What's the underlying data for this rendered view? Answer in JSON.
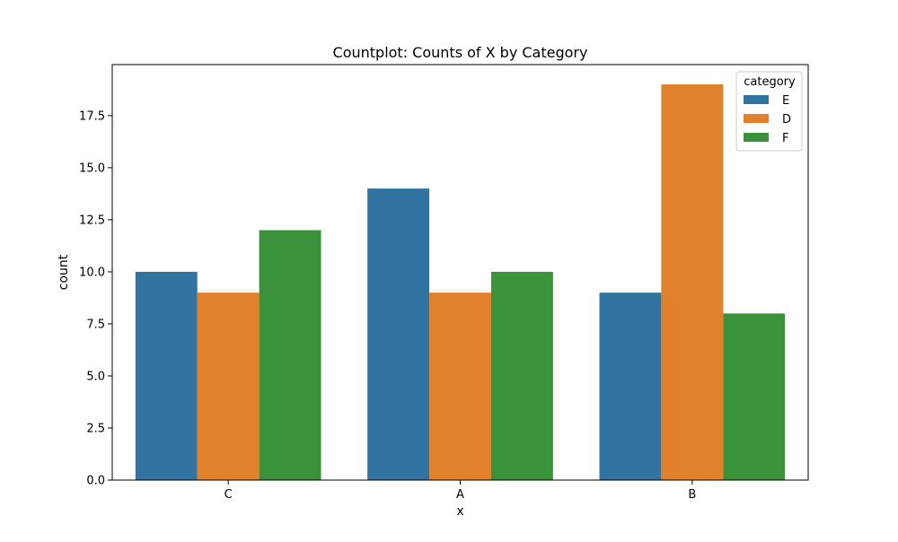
{
  "chart_data": {
    "type": "bar",
    "title": "Countplot: Counts of X by Category",
    "xlabel": "x",
    "ylabel": "count",
    "categories": [
      "C",
      "A",
      "B"
    ],
    "series": [
      {
        "name": "E",
        "color": "#3274a1",
        "values": [
          10,
          14,
          9
        ]
      },
      {
        "name": "D",
        "color": "#e1812c",
        "values": [
          9,
          9,
          19
        ]
      },
      {
        "name": "F",
        "color": "#3a923a",
        "values": [
          12,
          10,
          8
        ]
      }
    ],
    "ylim": [
      0,
      19.95
    ],
    "yticks": [
      0.0,
      2.5,
      5.0,
      7.5,
      10.0,
      12.5,
      15.0,
      17.5
    ],
    "ytick_labels": [
      "0.0",
      "2.5",
      "5.0",
      "7.5",
      "10.0",
      "12.5",
      "15.0",
      "17.5"
    ],
    "legend": {
      "title": "category",
      "position": "top-right"
    },
    "grid": false
  }
}
